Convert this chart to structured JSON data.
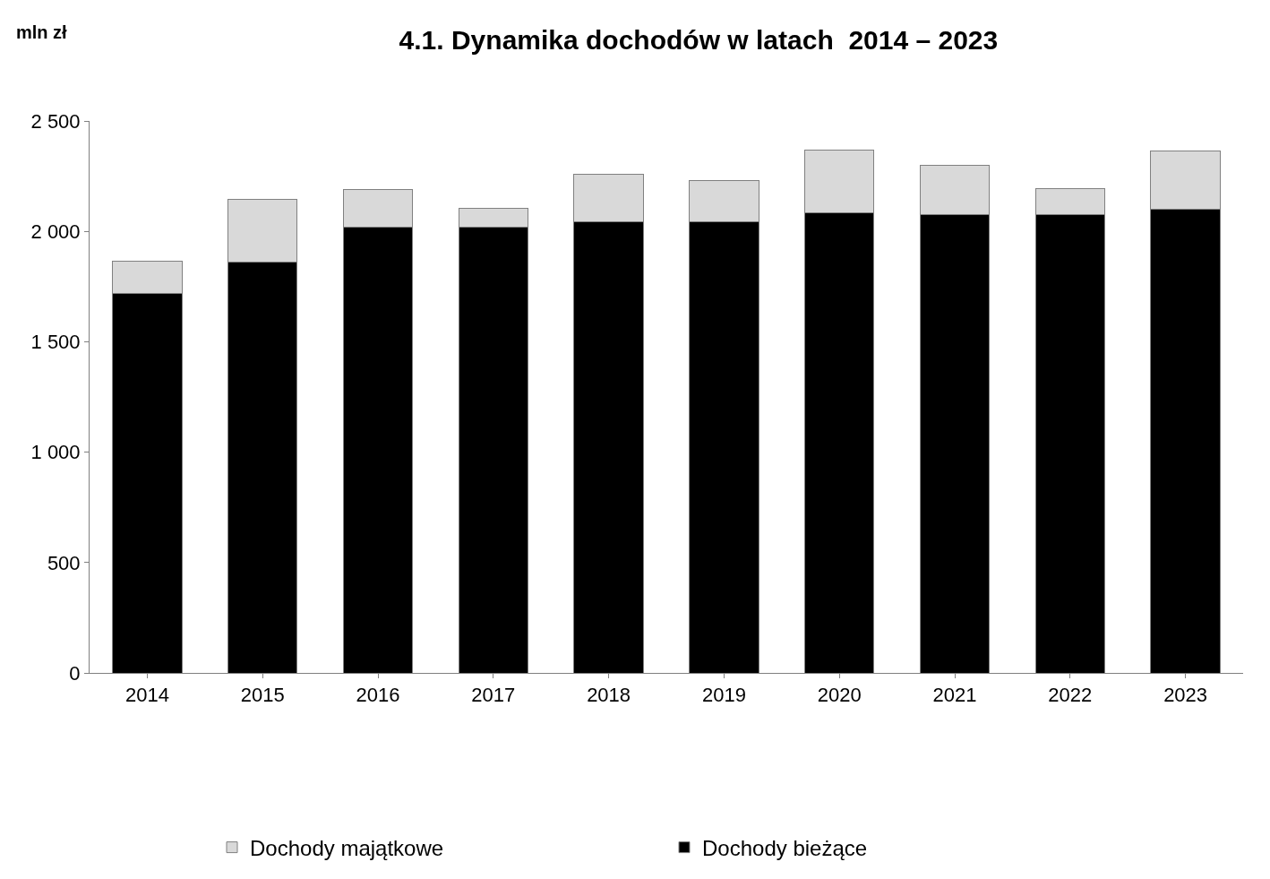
{
  "chart_data": {
    "type": "bar",
    "title": "4.1. Dynamika dochodów w latach  2014 – 2023",
    "ylabel": "mln zł",
    "stacked": true,
    "legend": "bottom",
    "categories": [
      "2014",
      "2015",
      "2016",
      "2017",
      "2018",
      "2019",
      "2020",
      "2021",
      "2022",
      "2023"
    ],
    "series": [
      {
        "name": "Dochody bieżące",
        "color": "#000000",
        "values": [
          1720,
          1860,
          2020,
          2020,
          2045,
          2045,
          2085,
          2075,
          2075,
          2100
        ]
      },
      {
        "name": "Dochody majątkowe",
        "color": "#d9d9d9",
        "values": [
          145,
          285,
          170,
          85,
          215,
          185,
          285,
          225,
          120,
          265
        ]
      }
    ],
    "ylim": [
      0,
      2500
    ],
    "yticks": [
      {
        "value": 0,
        "label": "0"
      },
      {
        "value": 500,
        "label": "500"
      },
      {
        "value": 1000,
        "label": "1 000"
      },
      {
        "value": 1500,
        "label": "1 500"
      },
      {
        "value": 2000,
        "label": "2 000"
      },
      {
        "value": 2500,
        "label": "2 500"
      }
    ]
  }
}
